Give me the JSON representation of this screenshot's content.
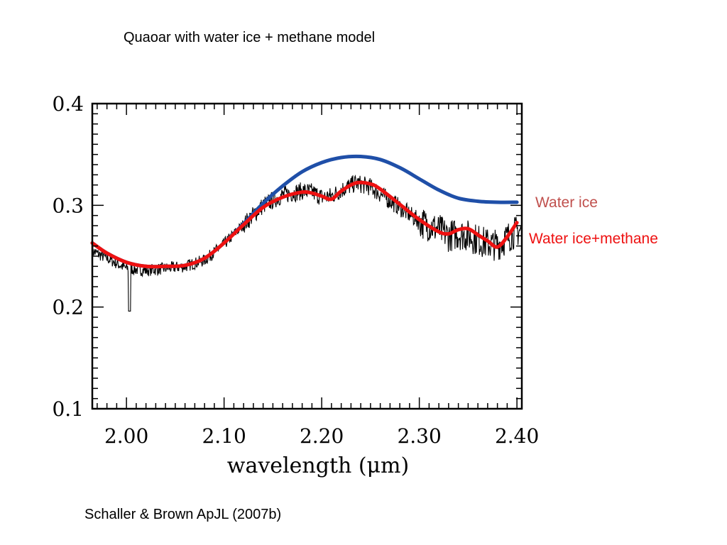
{
  "slide": {
    "title": "Quaoar with water ice + methane model",
    "citation": "Schaller & Brown ApJL (2007b)"
  },
  "colors": {
    "water_ice": "#1f4fa8",
    "water_ice_methane": "#ee1111",
    "water_ice_label": "#c0504d",
    "data": "#000000"
  },
  "chart_data": {
    "type": "line",
    "title": "",
    "xlabel": "wavelength (μm)",
    "ylabel": "",
    "xlim": [
      1.965,
      2.405
    ],
    "ylim": [
      0.1,
      0.4
    ],
    "x_ticks": [
      2.0,
      2.1,
      2.2,
      2.3,
      2.4
    ],
    "x_tick_labels": [
      "2.00",
      "2.10",
      "2.20",
      "2.30",
      "2.40"
    ],
    "y_ticks": [
      0.1,
      0.2,
      0.3,
      0.4
    ],
    "y_tick_labels": [
      "0.1",
      "0.2",
      "0.3",
      "0.4"
    ],
    "grid": false,
    "series": [
      {
        "name": "Water ice",
        "style": "smooth-model",
        "x": [
          1.965,
          1.98,
          2.0,
          2.02,
          2.04,
          2.06,
          2.08,
          2.1,
          2.12,
          2.14,
          2.16,
          2.18,
          2.2,
          2.22,
          2.24,
          2.26,
          2.28,
          2.3,
          2.32,
          2.34,
          2.36,
          2.38,
          2.4
        ],
        "y": [
          0.263,
          0.253,
          0.244,
          0.24,
          0.24,
          0.241,
          0.248,
          0.263,
          0.282,
          0.302,
          0.319,
          0.333,
          0.342,
          0.347,
          0.348,
          0.345,
          0.337,
          0.326,
          0.315,
          0.307,
          0.304,
          0.303,
          0.303
        ]
      },
      {
        "name": "Water ice+methane",
        "style": "smooth-model",
        "x": [
          1.965,
          1.98,
          2.0,
          2.02,
          2.04,
          2.06,
          2.08,
          2.1,
          2.12,
          2.14,
          2.16,
          2.18,
          2.19,
          2.2,
          2.21,
          2.22,
          2.235,
          2.25,
          2.26,
          2.28,
          2.3,
          2.32,
          2.33,
          2.34,
          2.35,
          2.36,
          2.37,
          2.38,
          2.39,
          2.4
        ],
        "y": [
          0.263,
          0.253,
          0.244,
          0.24,
          0.24,
          0.241,
          0.248,
          0.263,
          0.281,
          0.298,
          0.308,
          0.313,
          0.312,
          0.309,
          0.306,
          0.314,
          0.322,
          0.321,
          0.316,
          0.301,
          0.286,
          0.274,
          0.272,
          0.276,
          0.277,
          0.271,
          0.265,
          0.259,
          0.269,
          0.283
        ]
      },
      {
        "name": "",
        "style": "noisy-data",
        "x": [
          1.965,
          1.98,
          2.0,
          2.02,
          2.04,
          2.06,
          2.08,
          2.1,
          2.12,
          2.14,
          2.16,
          2.18,
          2.19,
          2.2,
          2.21,
          2.22,
          2.235,
          2.25,
          2.26,
          2.28,
          2.3,
          2.32,
          2.33,
          2.34,
          2.35,
          2.36,
          2.37,
          2.38,
          2.39,
          2.4
        ],
        "y": [
          0.255,
          0.248,
          0.238,
          0.236,
          0.238,
          0.24,
          0.246,
          0.262,
          0.281,
          0.3,
          0.31,
          0.314,
          0.313,
          0.308,
          0.309,
          0.315,
          0.322,
          0.318,
          0.311,
          0.298,
          0.284,
          0.276,
          0.27,
          0.272,
          0.27,
          0.266,
          0.262,
          0.261,
          0.268,
          0.275
        ]
      }
    ]
  }
}
